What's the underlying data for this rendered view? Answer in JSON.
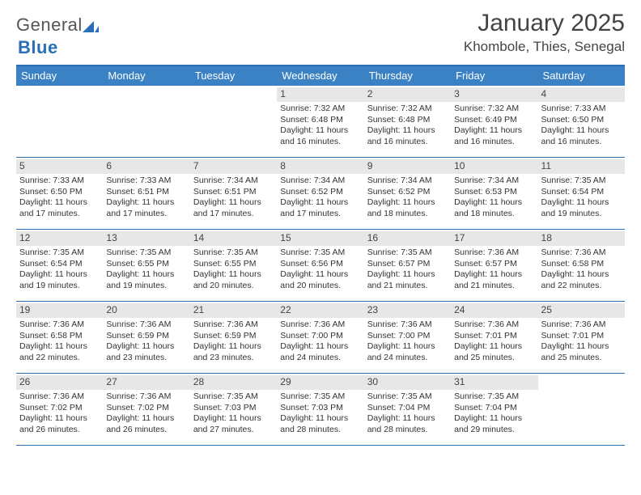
{
  "brand": {
    "part1": "General",
    "part2": "Blue"
  },
  "title": {
    "month": "January 2025",
    "location": "Khombole, Thies, Senegal"
  },
  "colors": {
    "accent": "#3a82c4",
    "rule": "#2a6fb5",
    "daybg": "#e7e7e7",
    "text": "#333333"
  },
  "dow": [
    "Sunday",
    "Monday",
    "Tuesday",
    "Wednesday",
    "Thursday",
    "Friday",
    "Saturday"
  ],
  "weeks": [
    [
      {
        "empty": true
      },
      {
        "empty": true
      },
      {
        "empty": true
      },
      {
        "day": "1",
        "sunrise": "7:32 AM",
        "sunset": "6:48 PM",
        "daylight": "11 hours and 16 minutes."
      },
      {
        "day": "2",
        "sunrise": "7:32 AM",
        "sunset": "6:48 PM",
        "daylight": "11 hours and 16 minutes."
      },
      {
        "day": "3",
        "sunrise": "7:32 AM",
        "sunset": "6:49 PM",
        "daylight": "11 hours and 16 minutes."
      },
      {
        "day": "4",
        "sunrise": "7:33 AM",
        "sunset": "6:50 PM",
        "daylight": "11 hours and 16 minutes."
      }
    ],
    [
      {
        "day": "5",
        "sunrise": "7:33 AM",
        "sunset": "6:50 PM",
        "daylight": "11 hours and 17 minutes."
      },
      {
        "day": "6",
        "sunrise": "7:33 AM",
        "sunset": "6:51 PM",
        "daylight": "11 hours and 17 minutes."
      },
      {
        "day": "7",
        "sunrise": "7:34 AM",
        "sunset": "6:51 PM",
        "daylight": "11 hours and 17 minutes."
      },
      {
        "day": "8",
        "sunrise": "7:34 AM",
        "sunset": "6:52 PM",
        "daylight": "11 hours and 17 minutes."
      },
      {
        "day": "9",
        "sunrise": "7:34 AM",
        "sunset": "6:52 PM",
        "daylight": "11 hours and 18 minutes."
      },
      {
        "day": "10",
        "sunrise": "7:34 AM",
        "sunset": "6:53 PM",
        "daylight": "11 hours and 18 minutes."
      },
      {
        "day": "11",
        "sunrise": "7:35 AM",
        "sunset": "6:54 PM",
        "daylight": "11 hours and 19 minutes."
      }
    ],
    [
      {
        "day": "12",
        "sunrise": "7:35 AM",
        "sunset": "6:54 PM",
        "daylight": "11 hours and 19 minutes."
      },
      {
        "day": "13",
        "sunrise": "7:35 AM",
        "sunset": "6:55 PM",
        "daylight": "11 hours and 19 minutes."
      },
      {
        "day": "14",
        "sunrise": "7:35 AM",
        "sunset": "6:55 PM",
        "daylight": "11 hours and 20 minutes."
      },
      {
        "day": "15",
        "sunrise": "7:35 AM",
        "sunset": "6:56 PM",
        "daylight": "11 hours and 20 minutes."
      },
      {
        "day": "16",
        "sunrise": "7:35 AM",
        "sunset": "6:57 PM",
        "daylight": "11 hours and 21 minutes."
      },
      {
        "day": "17",
        "sunrise": "7:36 AM",
        "sunset": "6:57 PM",
        "daylight": "11 hours and 21 minutes."
      },
      {
        "day": "18",
        "sunrise": "7:36 AM",
        "sunset": "6:58 PM",
        "daylight": "11 hours and 22 minutes."
      }
    ],
    [
      {
        "day": "19",
        "sunrise": "7:36 AM",
        "sunset": "6:58 PM",
        "daylight": "11 hours and 22 minutes."
      },
      {
        "day": "20",
        "sunrise": "7:36 AM",
        "sunset": "6:59 PM",
        "daylight": "11 hours and 23 minutes."
      },
      {
        "day": "21",
        "sunrise": "7:36 AM",
        "sunset": "6:59 PM",
        "daylight": "11 hours and 23 minutes."
      },
      {
        "day": "22",
        "sunrise": "7:36 AM",
        "sunset": "7:00 PM",
        "daylight": "11 hours and 24 minutes."
      },
      {
        "day": "23",
        "sunrise": "7:36 AM",
        "sunset": "7:00 PM",
        "daylight": "11 hours and 24 minutes."
      },
      {
        "day": "24",
        "sunrise": "7:36 AM",
        "sunset": "7:01 PM",
        "daylight": "11 hours and 25 minutes."
      },
      {
        "day": "25",
        "sunrise": "7:36 AM",
        "sunset": "7:01 PM",
        "daylight": "11 hours and 25 minutes."
      }
    ],
    [
      {
        "day": "26",
        "sunrise": "7:36 AM",
        "sunset": "7:02 PM",
        "daylight": "11 hours and 26 minutes."
      },
      {
        "day": "27",
        "sunrise": "7:36 AM",
        "sunset": "7:02 PM",
        "daylight": "11 hours and 26 minutes."
      },
      {
        "day": "28",
        "sunrise": "7:35 AM",
        "sunset": "7:03 PM",
        "daylight": "11 hours and 27 minutes."
      },
      {
        "day": "29",
        "sunrise": "7:35 AM",
        "sunset": "7:03 PM",
        "daylight": "11 hours and 28 minutes."
      },
      {
        "day": "30",
        "sunrise": "7:35 AM",
        "sunset": "7:04 PM",
        "daylight": "11 hours and 28 minutes."
      },
      {
        "day": "31",
        "sunrise": "7:35 AM",
        "sunset": "7:04 PM",
        "daylight": "11 hours and 29 minutes."
      },
      {
        "empty": true
      }
    ]
  ]
}
